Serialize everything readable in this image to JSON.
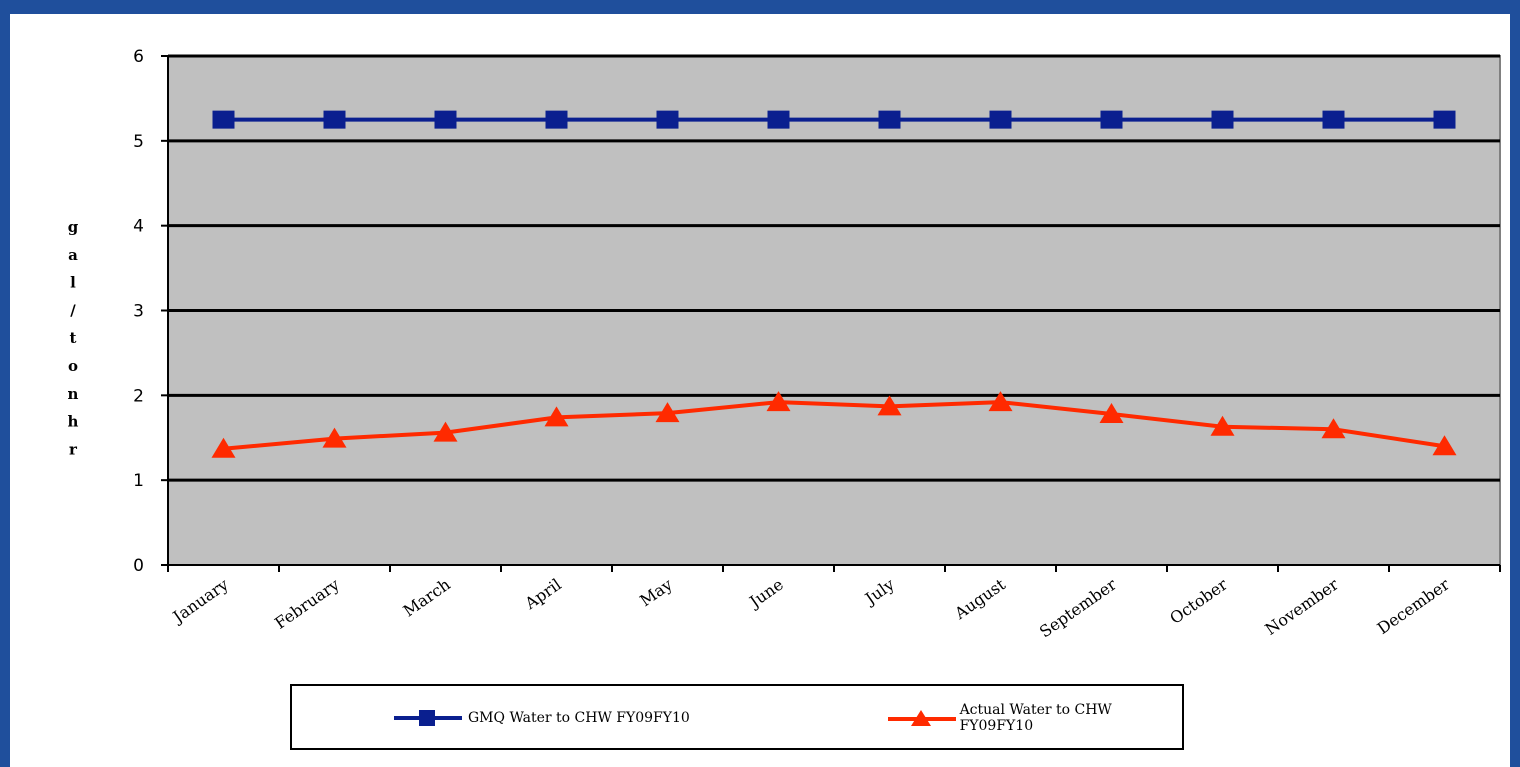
{
  "chart_data": {
    "type": "line",
    "title": "",
    "xlabel": "",
    "ylabel": "gal/tonhr",
    "ylim": [
      0,
      6
    ],
    "yticks": [
      0,
      1,
      2,
      3,
      4,
      5,
      6
    ],
    "grid": "horizontal",
    "legend_position": "bottom",
    "plot_background": "#c0c0c0",
    "categories": [
      "January",
      "February",
      "March",
      "April",
      "May",
      "June",
      "July",
      "August",
      "September",
      "October",
      "November",
      "December"
    ],
    "series": [
      {
        "name": "GMQ Water to CHW FY09FY10",
        "color": "#0a1f8f",
        "marker": "square",
        "values": [
          5.25,
          5.25,
          5.25,
          5.25,
          5.25,
          5.25,
          5.25,
          5.25,
          5.25,
          5.25,
          5.25,
          5.25
        ]
      },
      {
        "name": "Actual Water to CHW FY09FY10",
        "color": "#ff2a00",
        "marker": "triangle",
        "values": [
          1.37,
          1.49,
          1.56,
          1.74,
          1.79,
          1.92,
          1.87,
          1.92,
          1.78,
          1.63,
          1.6,
          1.4
        ]
      }
    ]
  }
}
